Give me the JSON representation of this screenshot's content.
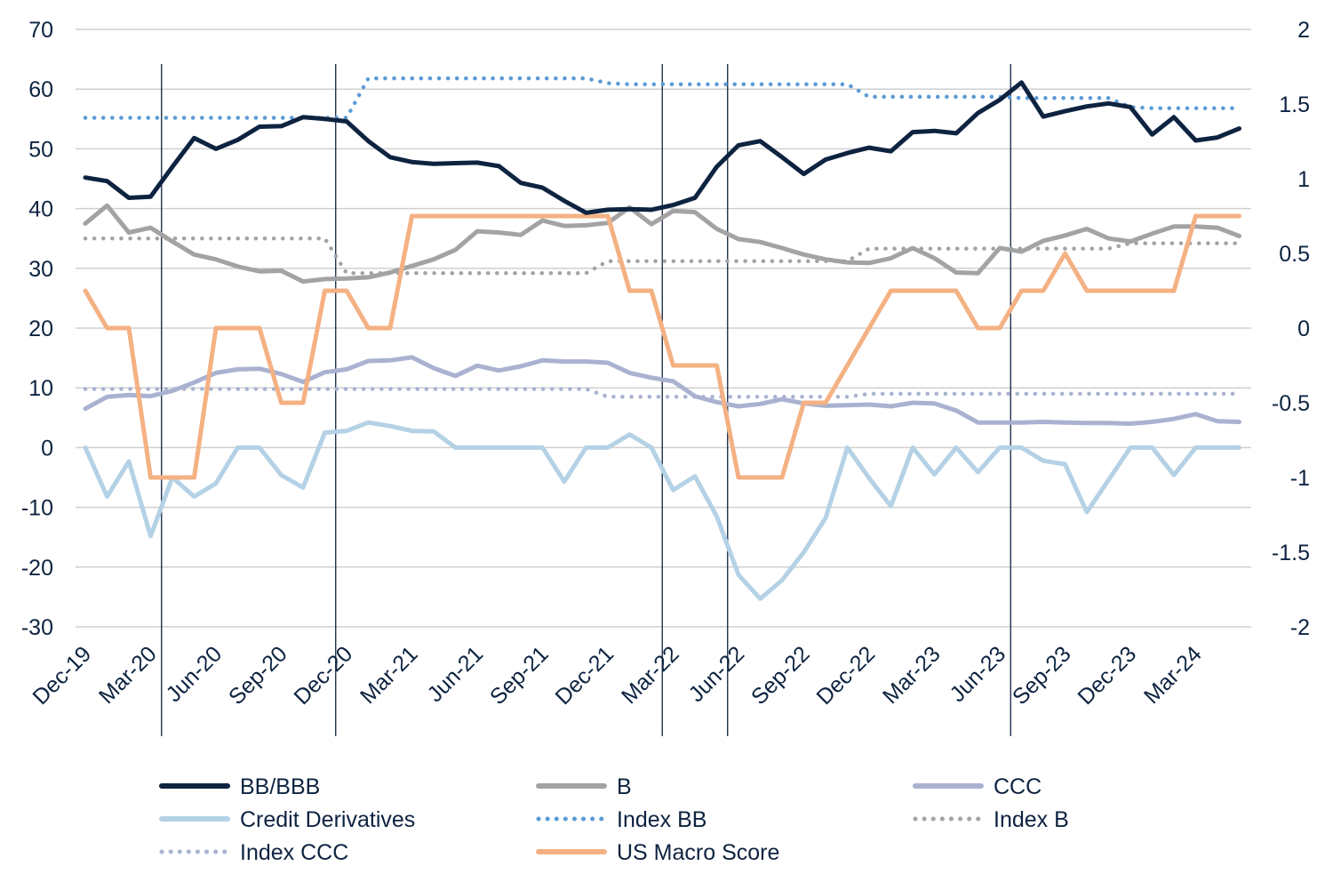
{
  "chart_data": {
    "type": "line",
    "title": "",
    "xlabel": "",
    "ylabel": "",
    "ylim": [
      -30,
      70
    ],
    "y2lim": [
      -2,
      2
    ],
    "y_ticks": [
      "70",
      "60",
      "50",
      "40",
      "30",
      "20",
      "10",
      "0",
      "-10",
      "-20",
      "-30"
    ],
    "y2_ticks": [
      "2",
      "1.5",
      "1",
      "0.5",
      "0",
      "-0.5",
      "-1",
      "-1.5",
      "-2"
    ],
    "x_tick_labels": [
      "Dec-19",
      "Mar-20",
      "Jun-20",
      "Sep-20",
      "Dec-20",
      "Mar-21",
      "Jun-21",
      "Sep-21",
      "Dec-21",
      "Mar-22",
      "Jun-22",
      "Sep-22",
      "Dec-22",
      "Mar-23",
      "Jun-23",
      "Sep-23",
      "Dec-23",
      "Mar-24"
    ],
    "x": [
      "Dec-19",
      "Jan-20",
      "Feb-20",
      "Mar-20",
      "Apr-20",
      "May-20",
      "Jun-20",
      "Jul-20",
      "Aug-20",
      "Sep-20",
      "Oct-20",
      "Nov-20",
      "Dec-20",
      "Jan-21",
      "Feb-21",
      "Mar-21",
      "Apr-21",
      "May-21",
      "Jun-21",
      "Jul-21",
      "Aug-21",
      "Sep-21",
      "Oct-21",
      "Nov-21",
      "Dec-21",
      "Jan-22",
      "Feb-22",
      "Mar-22",
      "Apr-22",
      "May-22",
      "Jun-22",
      "Jul-22",
      "Aug-22",
      "Sep-22",
      "Oct-22",
      "Nov-22",
      "Dec-22",
      "Jan-23",
      "Feb-23",
      "Mar-23",
      "Apr-23",
      "May-23",
      "Jun-23",
      "Jul-23",
      "Aug-23",
      "Sep-23",
      "Oct-23",
      "Nov-23",
      "Dec-23",
      "Jan-24",
      "Feb-24",
      "Mar-24",
      "Apr-24",
      "May-24"
    ],
    "vertical_markers": [
      "Mar-20",
      "Nov-20",
      "Feb-22",
      "May-22",
      "Jun-23"
    ],
    "grid": true,
    "legend_position": "bottom",
    "series": [
      {
        "name": "BB/BBB",
        "axis": "left",
        "style": "solid",
        "color": "#0d2340",
        "values": [
          45.2,
          44.6,
          41.8,
          42.0,
          47.0,
          51.8,
          50.0,
          51.5,
          53.7,
          53.8,
          55.3,
          55.0,
          54.6,
          51.3,
          48.6,
          47.8,
          47.5,
          47.6,
          47.7,
          47.1,
          44.3,
          43.5,
          41.3,
          39.3,
          39.8,
          39.9,
          39.8,
          40.6,
          41.8,
          47.0,
          50.6,
          51.3,
          48.6,
          45.8,
          48.2,
          49.3,
          50.2,
          49.6,
          52.8,
          53.0,
          52.6,
          56.0,
          58.2,
          61.1,
          55.4,
          56.3,
          57.1,
          57.6,
          57.0,
          52.4,
          55.3,
          51.4,
          51.9,
          53.4
        ]
      },
      {
        "name": "B",
        "axis": "left",
        "style": "solid",
        "color": "#a3a3a3",
        "values": [
          37.5,
          40.5,
          36.0,
          36.8,
          34.5,
          32.3,
          31.5,
          30.3,
          29.5,
          29.6,
          27.8,
          28.2,
          28.3,
          28.5,
          29.3,
          30.4,
          31.5,
          33.1,
          36.2,
          36.0,
          35.6,
          38.0,
          37.1,
          37.2,
          37.6,
          40.2,
          37.4,
          39.6,
          39.4,
          36.6,
          34.9,
          34.4,
          33.4,
          32.3,
          31.5,
          31.0,
          30.9,
          31.7,
          33.4,
          31.7,
          29.3,
          29.2,
          33.4,
          32.8,
          34.6,
          35.5,
          36.6,
          35.0,
          34.5,
          35.8,
          37.0,
          37.0,
          36.8,
          35.4
        ]
      },
      {
        "name": "CCC",
        "axis": "left",
        "style": "solid",
        "color": "#a9b2d0",
        "values": [
          6.5,
          8.5,
          8.8,
          8.6,
          9.5,
          10.9,
          12.5,
          13.1,
          13.2,
          12.3,
          11.0,
          12.6,
          13.1,
          14.5,
          14.6,
          15.1,
          13.3,
          12.0,
          13.7,
          12.9,
          13.6,
          14.6,
          14.4,
          14.4,
          14.2,
          12.5,
          11.7,
          11.1,
          8.6,
          7.6,
          6.9,
          7.3,
          8.1,
          7.4,
          7.0,
          7.1,
          7.2,
          6.9,
          7.5,
          7.4,
          6.2,
          4.2,
          4.2,
          4.2,
          4.3,
          4.2,
          4.1,
          4.1,
          4.0,
          4.3,
          4.8,
          5.6,
          4.4,
          4.3
        ]
      },
      {
        "name": "Credit Derivatives",
        "axis": "left",
        "style": "solid",
        "color": "#b4d1e5",
        "values": [
          0,
          -8.2,
          -2.3,
          -14.8,
          -5.0,
          -8.2,
          -6.0,
          0,
          0,
          -4.6,
          -6.7,
          2.5,
          2.8,
          4.2,
          3.6,
          2.8,
          2.7,
          0,
          0,
          0,
          0,
          0,
          -5.7,
          0,
          0,
          2.2,
          0,
          -7.1,
          -4.8,
          -11.5,
          -21.3,
          -25.3,
          -22.2,
          -17.5,
          -11.8,
          0,
          -5.1,
          -9.8,
          0,
          -4.5,
          0,
          -4.1,
          0,
          0,
          -2.2,
          -2.8,
          -10.8,
          -5.4,
          0,
          0,
          -4.6,
          0,
          0,
          0
        ]
      },
      {
        "name": "Index BB",
        "axis": "left",
        "style": "dotted",
        "color": "#5b9bd5",
        "values": [
          55.2,
          55.2,
          55.2,
          55.2,
          55.2,
          55.2,
          55.2,
          55.2,
          55.2,
          55.2,
          55.2,
          55.2,
          55.2,
          61.8,
          61.8,
          61.8,
          61.8,
          61.8,
          61.8,
          61.8,
          61.8,
          61.8,
          61.8,
          61.8,
          61.0,
          60.8,
          60.8,
          60.8,
          60.8,
          60.8,
          60.8,
          60.8,
          60.8,
          60.8,
          60.8,
          60.8,
          58.7,
          58.7,
          58.7,
          58.7,
          58.7,
          58.7,
          58.7,
          58.5,
          58.5,
          58.5,
          58.5,
          58.5,
          57.0,
          56.8,
          56.8,
          56.8,
          56.8,
          56.8
        ]
      },
      {
        "name": "Index B",
        "axis": "left",
        "style": "dotted",
        "color": "#a3a3a3",
        "values": [
          35.0,
          35.0,
          35.0,
          35.0,
          35.0,
          35.0,
          35.0,
          35.0,
          35.0,
          35.0,
          35.0,
          35.0,
          29.2,
          29.2,
          29.2,
          29.2,
          29.2,
          29.2,
          29.2,
          29.2,
          29.2,
          29.2,
          29.2,
          29.2,
          31.2,
          31.2,
          31.2,
          31.2,
          31.2,
          31.2,
          31.2,
          31.2,
          31.2,
          31.2,
          31.2,
          31.2,
          33.3,
          33.3,
          33.3,
          33.3,
          33.3,
          33.3,
          33.3,
          33.3,
          33.3,
          33.3,
          33.3,
          33.3,
          34.2,
          34.2,
          34.2,
          34.2,
          34.2,
          34.2
        ]
      },
      {
        "name": "Index CCC",
        "axis": "left",
        "style": "dotted",
        "color": "#a9b2d0",
        "values": [
          9.8,
          9.8,
          9.8,
          9.8,
          9.8,
          9.8,
          9.8,
          9.8,
          9.8,
          9.8,
          9.8,
          9.8,
          9.8,
          9.8,
          9.8,
          9.8,
          9.8,
          9.8,
          9.8,
          9.8,
          9.8,
          9.8,
          9.8,
          9.8,
          8.5,
          8.5,
          8.5,
          8.5,
          8.5,
          8.5,
          8.5,
          8.5,
          8.5,
          8.5,
          8.5,
          8.5,
          9.0,
          9.0,
          9.0,
          9.0,
          9.0,
          9.0,
          9.0,
          9.0,
          9.0,
          9.0,
          9.0,
          9.0,
          9.0,
          9.0,
          9.0,
          9.0,
          9.0,
          9.0
        ]
      },
      {
        "name": "US Macro Score",
        "axis": "right",
        "style": "solid",
        "color": "#f4b183",
        "values": [
          0.25,
          0,
          0,
          -1,
          -1,
          -1,
          0,
          0,
          0,
          -0.5,
          -0.5,
          0.25,
          0.25,
          0,
          0,
          0.75,
          0.75,
          0.75,
          0.75,
          0.75,
          0.75,
          0.75,
          0.75,
          0.75,
          0.75,
          0.25,
          0.25,
          -0.25,
          -0.25,
          -0.25,
          -1,
          -1,
          -1,
          -0.5,
          -0.5,
          -0.25,
          0,
          0.25,
          0.25,
          0.25,
          0.25,
          0,
          0,
          0.25,
          0.25,
          0.5,
          0.25,
          0.25,
          0.25,
          0.25,
          0.25,
          0.75,
          0.75,
          0.75
        ]
      }
    ]
  }
}
